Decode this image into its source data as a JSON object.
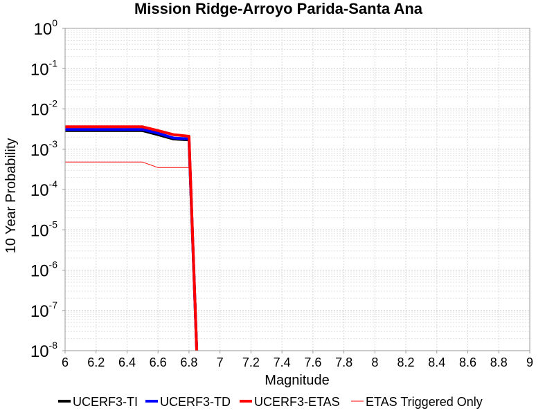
{
  "chart_data": {
    "type": "line",
    "title": "Mission Ridge-Arroyo Parida-Santa Ana",
    "xlabel": "Magnitude",
    "ylabel": "10 Year Probability",
    "xlim": [
      6,
      9
    ],
    "ylim": [
      1e-08,
      1
    ],
    "yscale": "log",
    "grid": true,
    "legend_position": "bottom",
    "x_ticks": [
      "6",
      "6.2",
      "6.4",
      "6.6",
      "6.8",
      "7",
      "7.2",
      "7.4",
      "7.6",
      "7.8",
      "8",
      "8.2",
      "8.4",
      "8.6",
      "8.8",
      "9"
    ],
    "y_ticks": [
      {
        "base": "10",
        "exp": "0"
      },
      {
        "base": "10",
        "exp": "-1"
      },
      {
        "base": "10",
        "exp": "-2"
      },
      {
        "base": "10",
        "exp": "-3"
      },
      {
        "base": "10",
        "exp": "-4"
      },
      {
        "base": "10",
        "exp": "-5"
      },
      {
        "base": "10",
        "exp": "-6"
      },
      {
        "base": "10",
        "exp": "-7"
      },
      {
        "base": "10",
        "exp": "-8"
      }
    ],
    "series": [
      {
        "name": "UCERF3-TI",
        "color": "#000000",
        "line_width": "thick",
        "x": [
          6.0,
          6.1,
          6.2,
          6.3,
          6.4,
          6.5,
          6.6,
          6.7,
          6.8,
          6.85
        ],
        "y": [
          0.0029,
          0.0029,
          0.0029,
          0.0029,
          0.0029,
          0.0029,
          0.0023,
          0.0018,
          0.0017,
          1e-09
        ]
      },
      {
        "name": "UCERF3-TD",
        "color": "#0000ff",
        "line_width": "thick",
        "x": [
          6.0,
          6.1,
          6.2,
          6.3,
          6.4,
          6.5,
          6.6,
          6.7,
          6.8,
          6.85
        ],
        "y": [
          0.0031,
          0.0031,
          0.0031,
          0.0031,
          0.0031,
          0.0031,
          0.0025,
          0.0019,
          0.0018,
          1e-09
        ]
      },
      {
        "name": "UCERF3-ETAS",
        "color": "#ff0000",
        "line_width": "thick",
        "x": [
          6.0,
          6.1,
          6.2,
          6.3,
          6.4,
          6.5,
          6.6,
          6.7,
          6.8,
          6.85
        ],
        "y": [
          0.0036,
          0.0036,
          0.0036,
          0.0036,
          0.0036,
          0.0036,
          0.0029,
          0.0023,
          0.0021,
          1e-09
        ]
      },
      {
        "name": "ETAS Triggered Only",
        "color": "#ff0000",
        "line_width": "thin",
        "x": [
          6.0,
          6.1,
          6.2,
          6.3,
          6.4,
          6.5,
          6.6,
          6.7,
          6.8
        ],
        "y": [
          0.00048,
          0.00048,
          0.00048,
          0.00048,
          0.00048,
          0.00048,
          0.00035,
          0.00035,
          0.00035
        ]
      }
    ]
  }
}
